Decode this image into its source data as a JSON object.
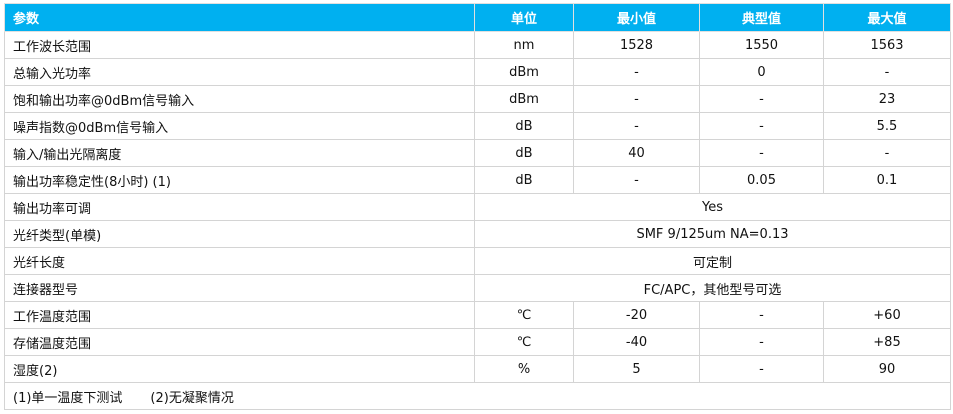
{
  "header": {
    "param": "参数",
    "unit": "单位",
    "min": "最小值",
    "typ": "典型值",
    "max": "最大值"
  },
  "rows": [
    {
      "param": "工作波长范围",
      "unit": "nm",
      "min": "1528",
      "typ": "1550",
      "max": "1563"
    },
    {
      "param": "总输入光功率",
      "unit": "dBm",
      "min": "-",
      "typ": "0",
      "max": "-"
    },
    {
      "param": "饱和输出功率@0dBm信号输入",
      "unit": "dBm",
      "min": "-",
      "typ": "-",
      "max": "23"
    },
    {
      "param": "噪声指数@0dBm信号输入",
      "unit": "dB",
      "min": "-",
      "typ": "-",
      "max": "5.5"
    },
    {
      "param": "输入/输出光隔离度",
      "unit": "dB",
      "min": "40",
      "typ": "-",
      "max": "-"
    },
    {
      "param": "输出功率稳定性(8小时) (1)",
      "unit": "dB",
      "min": "-",
      "typ": "0.05",
      "max": "0.1"
    },
    {
      "param": "输出功率可调",
      "span": "Yes"
    },
    {
      "param": "光纤类型(单模)",
      "span": "SMF 9/125um NA=0.13"
    },
    {
      "param": "光纤长度",
      "span": "可定制"
    },
    {
      "param": "连接器型号",
      "span": "FC/APC，其他型号可选"
    },
    {
      "param": "工作温度范围",
      "unit": "℃",
      "min": "-20",
      "typ": "-",
      "max": "+60"
    },
    {
      "param": "存储温度范围",
      "unit": "℃",
      "min": "-40",
      "typ": "-",
      "max": "+85"
    },
    {
      "param": "湿度(2)",
      "unit": "%",
      "min": "5",
      "typ": "-",
      "max": "90"
    }
  ],
  "notes": [
    "(1)单一温度下测试",
    "(2)无凝聚情况"
  ],
  "colors": {
    "header_bg": "#00b0f0",
    "border": "#d4d4d4"
  }
}
